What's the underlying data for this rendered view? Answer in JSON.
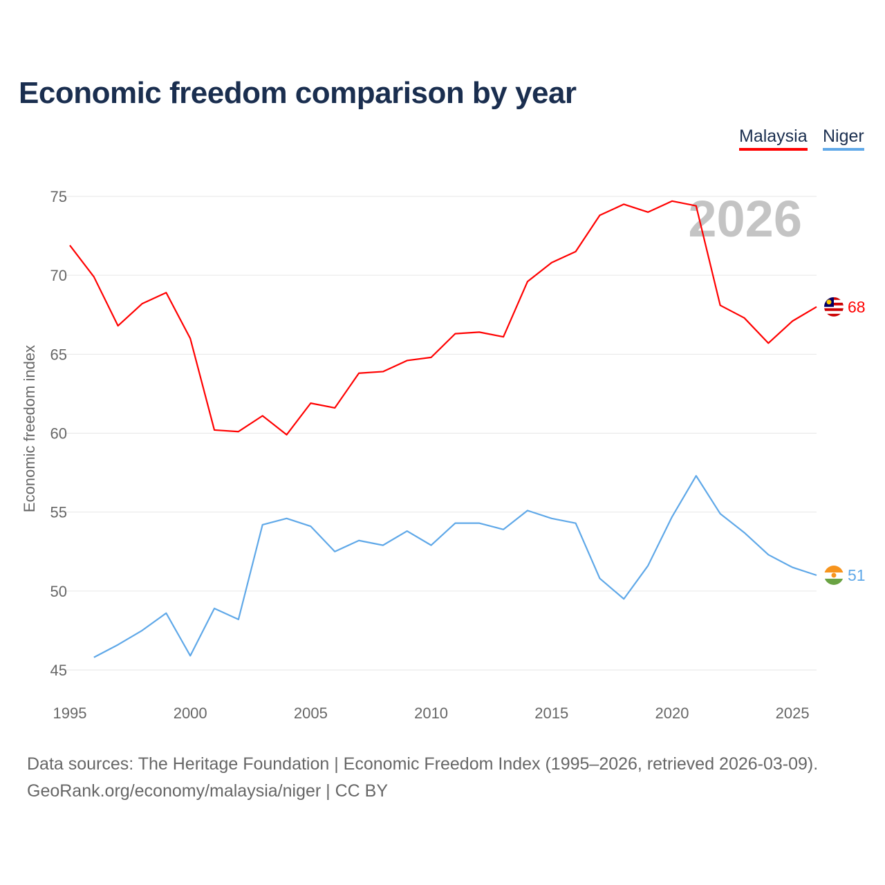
{
  "chart_data": {
    "type": "line",
    "title": "Economic freedom comparison by year",
    "xlabel": "",
    "ylabel": "Economic freedom index",
    "xlim": [
      1995,
      2026
    ],
    "ylim": [
      45,
      75
    ],
    "xticks": [
      "1995",
      "2000",
      "2005",
      "2010",
      "2015",
      "2020",
      "2025"
    ],
    "yticks": [
      "45",
      "50",
      "55",
      "60",
      "65",
      "70",
      "75"
    ],
    "grid": true,
    "legend_position": "top-right",
    "watermark_year": "2026",
    "series": [
      {
        "name": "Malaysia",
        "color": "#ff0000",
        "end_label": "68",
        "x": [
          1995,
          1996,
          1997,
          1998,
          1999,
          2000,
          2001,
          2002,
          2003,
          2004,
          2005,
          2006,
          2007,
          2008,
          2009,
          2010,
          2011,
          2012,
          2013,
          2014,
          2015,
          2016,
          2017,
          2018,
          2019,
          2020,
          2021,
          2022,
          2023,
          2024,
          2025,
          2026
        ],
        "values": [
          71.9,
          69.9,
          66.8,
          68.2,
          68.9,
          66.0,
          60.2,
          60.1,
          61.1,
          59.9,
          61.9,
          61.6,
          63.8,
          63.9,
          64.6,
          64.8,
          66.3,
          66.4,
          66.1,
          69.6,
          70.8,
          71.5,
          73.8,
          74.5,
          74.0,
          74.7,
          74.4,
          68.1,
          67.3,
          65.7,
          67.1,
          68.0
        ]
      },
      {
        "name": "Niger",
        "color": "#5fa8e8",
        "end_label": "51",
        "x": [
          1996,
          1997,
          1998,
          1999,
          2000,
          2001,
          2002,
          2003,
          2004,
          2005,
          2006,
          2007,
          2008,
          2009,
          2010,
          2011,
          2012,
          2013,
          2014,
          2015,
          2016,
          2017,
          2018,
          2019,
          2020,
          2021,
          2022,
          2023,
          2024,
          2025,
          2026
        ],
        "values": [
          45.8,
          46.6,
          47.5,
          48.6,
          45.9,
          48.9,
          48.2,
          54.2,
          54.6,
          54.1,
          52.5,
          53.2,
          52.9,
          53.8,
          52.9,
          54.3,
          54.3,
          53.9,
          55.1,
          54.6,
          54.3,
          50.8,
          49.5,
          51.6,
          54.7,
          57.3,
          54.9,
          53.7,
          52.3,
          51.5,
          51.0
        ]
      }
    ]
  },
  "source": {
    "line1": "Data sources: The Heritage Foundation | Economic Freedom Index (1995–2026, retrieved 2026-03-09).",
    "line2": "GeoRank.org/economy/malaysia/niger | CC BY"
  }
}
